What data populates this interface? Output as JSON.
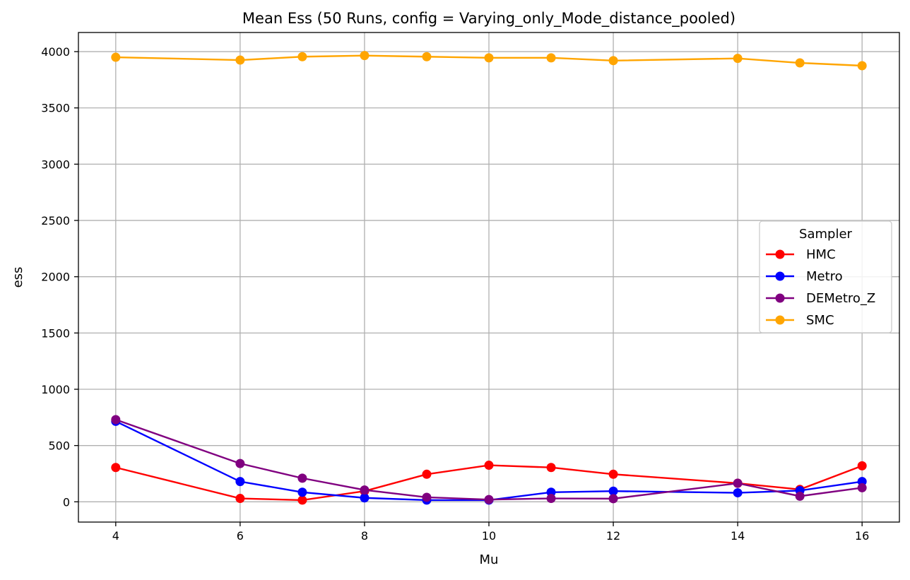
{
  "chart_data": {
    "type": "line",
    "title": "Mean Ess (50 Runs, config = Varying_only_Mode_distance_pooled)",
    "xlabel": "Mu",
    "ylabel": "ess",
    "xlim": [
      3.4,
      16.6
    ],
    "ylim": [
      -180,
      4170
    ],
    "xticks": [
      4,
      6,
      8,
      10,
      12,
      14,
      16
    ],
    "yticks": [
      0,
      500,
      1000,
      1500,
      2000,
      2500,
      3000,
      3500,
      4000
    ],
    "grid": true,
    "legend": {
      "title": "Sampler",
      "placement": "center-right"
    },
    "x": [
      4,
      6,
      7,
      8,
      9,
      10,
      11,
      12,
      14,
      15,
      16
    ],
    "series": [
      {
        "name": "HMC",
        "color": "#ff0000",
        "values": [
          305,
          30,
          15,
          95,
          245,
          325,
          305,
          245,
          165,
          110,
          320
        ]
      },
      {
        "name": "Metro",
        "color": "#0000ff",
        "values": [
          715,
          180,
          85,
          35,
          15,
          15,
          85,
          95,
          80,
          100,
          180
        ]
      },
      {
        "name": "DEMetro_Z",
        "color": "#800080",
        "values": [
          730,
          340,
          210,
          105,
          40,
          20,
          30,
          28,
          165,
          50,
          125
        ]
      },
      {
        "name": "SMC",
        "color": "#ffa500",
        "values": [
          3950,
          3925,
          3955,
          3965,
          3955,
          3945,
          3945,
          3920,
          3940,
          3900,
          3875
        ]
      }
    ]
  }
}
